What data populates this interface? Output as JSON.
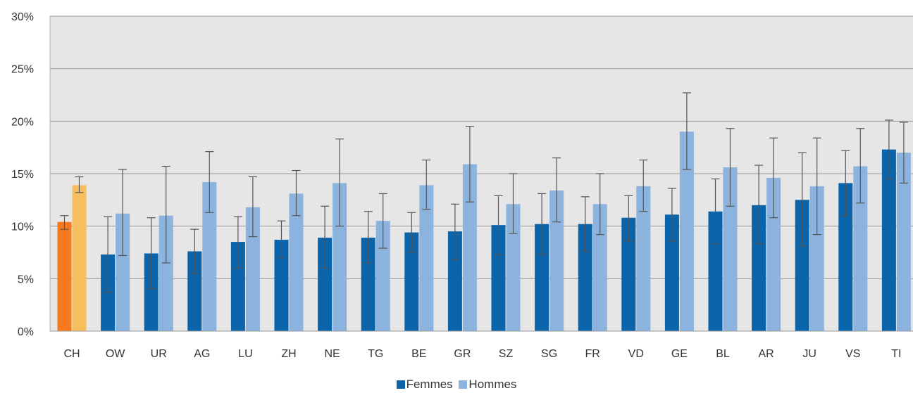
{
  "chart_data": {
    "type": "bar",
    "categories": [
      "CH",
      "OW",
      "UR",
      "AG",
      "LU",
      "ZH",
      "NE",
      "TG",
      "BE",
      "GR",
      "SZ",
      "SG",
      "FR",
      "VD",
      "GE",
      "BL",
      "AR",
      "JU",
      "VS",
      "TI"
    ],
    "series": [
      {
        "name": "Femmes",
        "color": "#0b63aa",
        "values": [
          10.4,
          7.3,
          7.4,
          7.6,
          8.5,
          8.7,
          8.9,
          8.9,
          9.4,
          9.5,
          10.1,
          10.2,
          10.2,
          10.8,
          11.1,
          11.4,
          12.0,
          12.5,
          14.1,
          17.3
        ],
        "error_low": [
          9.7,
          3.7,
          4.0,
          5.5,
          6.0,
          7.0,
          6.0,
          6.5,
          7.5,
          6.8,
          7.3,
          7.3,
          7.6,
          8.6,
          8.6,
          8.3,
          8.3,
          8.1,
          11.0,
          14.5
        ],
        "error_high": [
          11.0,
          10.9,
          10.8,
          9.7,
          10.9,
          10.5,
          11.9,
          11.4,
          11.3,
          12.1,
          12.9,
          13.1,
          12.8,
          12.9,
          13.6,
          14.5,
          15.8,
          17.0,
          17.2,
          20.1
        ]
      },
      {
        "name": "Hommes",
        "color": "#8bb3dd",
        "values": [
          13.9,
          11.2,
          11.0,
          14.2,
          11.8,
          13.1,
          14.1,
          10.5,
          13.9,
          15.9,
          12.1,
          13.4,
          12.1,
          13.8,
          19.0,
          15.6,
          14.6,
          13.8,
          15.7,
          17.0
        ],
        "error_low": [
          13.2,
          7.2,
          6.5,
          11.3,
          9.0,
          11.0,
          10.0,
          7.9,
          11.6,
          12.3,
          9.3,
          10.4,
          9.2,
          11.4,
          15.4,
          11.9,
          10.8,
          9.2,
          12.2,
          14.1
        ],
        "error_high": [
          14.7,
          15.4,
          15.7,
          17.1,
          14.7,
          15.3,
          18.3,
          13.1,
          16.3,
          19.5,
          15.0,
          16.5,
          15.0,
          16.3,
          22.7,
          19.3,
          18.4,
          18.4,
          19.3,
          19.9
        ]
      }
    ],
    "highlight": {
      "category": "CH",
      "femmes_color": "#f57a1f",
      "hommes_color": "#f6be5e"
    },
    "ylim": [
      0,
      30
    ],
    "y_ticks": [
      "0%",
      "5%",
      "10%",
      "15%",
      "20%",
      "25%",
      "30%"
    ],
    "grid": true,
    "legend_position": "bottom-center",
    "plot_background": "#e6e6e6",
    "errorbar_color": "#555555"
  },
  "legend": {
    "femmes": "Femmes",
    "hommes": "Hommes"
  }
}
